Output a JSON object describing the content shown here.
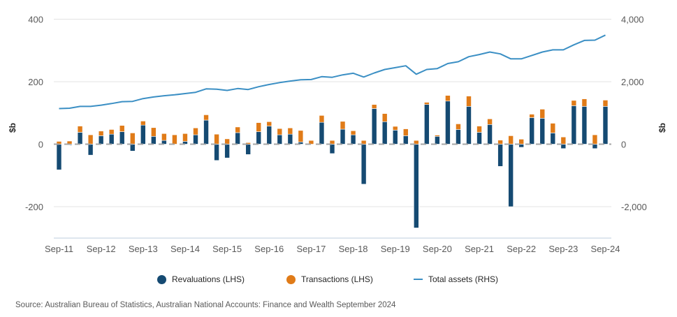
{
  "chart_data": {
    "type": "bar",
    "subtype": "stacked-bar-with-line-dual-axis",
    "title": "",
    "xlabel": "",
    "ylabel_left": "$b",
    "ylabel_right": "$b",
    "ylim_left": [
      -300,
      400
    ],
    "ylim_right": [
      -3000,
      4000
    ],
    "yticks_left": [
      "400",
      "200",
      "0",
      "-200"
    ],
    "yticks_left_values": [
      400,
      200,
      0,
      -200
    ],
    "yticks_right": [
      "4,000",
      "2,000",
      "0",
      "-2,000"
    ],
    "yticks_right_values": [
      4000,
      2000,
      0,
      -2000
    ],
    "grid": true,
    "legend_position": "bottom",
    "xtick_labels": [
      "Sep-11",
      "Sep-12",
      "Sep-13",
      "Sep-14",
      "Sep-15",
      "Sep-16",
      "Sep-17",
      "Sep-18",
      "Sep-19",
      "Sep-20",
      "Sep-21",
      "Sep-22",
      "Sep-23",
      "Sep-24"
    ],
    "categories": [
      "Sep-11",
      "Dec-11",
      "Mar-12",
      "Jun-12",
      "Sep-12",
      "Dec-12",
      "Mar-13",
      "Jun-13",
      "Sep-13",
      "Dec-13",
      "Mar-14",
      "Jun-14",
      "Sep-14",
      "Dec-14",
      "Mar-15",
      "Jun-15",
      "Sep-15",
      "Dec-15",
      "Mar-16",
      "Jun-16",
      "Sep-16",
      "Dec-16",
      "Mar-17",
      "Jun-17",
      "Sep-17",
      "Dec-17",
      "Mar-18",
      "Jun-18",
      "Sep-18",
      "Dec-18",
      "Mar-19",
      "Jun-19",
      "Sep-19",
      "Dec-19",
      "Mar-20",
      "Jun-20",
      "Sep-20",
      "Dec-20",
      "Mar-21",
      "Jun-21",
      "Sep-21",
      "Dec-21",
      "Mar-22",
      "Jun-22",
      "Sep-22",
      "Dec-22",
      "Mar-23",
      "Jun-23",
      "Sep-23",
      "Dec-23",
      "Mar-24",
      "Jun-24",
      "Sep-24"
    ],
    "series": [
      {
        "name": "Revaluations (LHS)",
        "axis": "left",
        "kind": "bar",
        "color": "#154a72",
        "values": [
          -82,
          -3,
          38,
          -35,
          27,
          32,
          40,
          -22,
          61,
          25,
          12,
          0,
          9,
          30,
          77,
          -52,
          -44,
          37,
          -33,
          40,
          58,
          30,
          32,
          7,
          0,
          70,
          -30,
          48,
          30,
          -128,
          114,
          72,
          45,
          27,
          -268,
          127,
          25,
          138,
          47,
          121,
          38,
          63,
          -71,
          -200,
          -10,
          85,
          83,
          36,
          -14,
          123,
          121,
          -14,
          121
        ]
      },
      {
        "name": "Transactions (LHS)",
        "axis": "left",
        "kind": "bar",
        "color": "#e07b18",
        "values": [
          9,
          10,
          20,
          30,
          15,
          15,
          20,
          36,
          13,
          28,
          22,
          30,
          25,
          22,
          17,
          32,
          17,
          18,
          5,
          29,
          14,
          20,
          20,
          37,
          12,
          22,
          12,
          25,
          13,
          12,
          13,
          26,
          12,
          22,
          12,
          7,
          4,
          18,
          18,
          33,
          20,
          18,
          13,
          27,
          16,
          11,
          29,
          31,
          23,
          17,
          24,
          30,
          20
        ]
      },
      {
        "name": "Total assets (RHS)",
        "axis": "right",
        "kind": "line",
        "color": "#3b8fc4",
        "values": [
          1140,
          1150,
          1210,
          1210,
          1250,
          1300,
          1360,
          1370,
          1460,
          1510,
          1550,
          1580,
          1620,
          1660,
          1770,
          1760,
          1720,
          1780,
          1750,
          1840,
          1910,
          1970,
          2020,
          2060,
          2070,
          2160,
          2140,
          2220,
          2270,
          2150,
          2280,
          2390,
          2450,
          2510,
          2240,
          2390,
          2420,
          2580,
          2640,
          2800,
          2870,
          2950,
          2890,
          2730,
          2730,
          2840,
          2950,
          3020,
          3020,
          3180,
          3320,
          3330,
          3490
        ]
      }
    ]
  },
  "legend": [
    {
      "label": "Revaluations (LHS)",
      "marker": "circle",
      "color": "#154a72"
    },
    {
      "label": "Transactions (LHS)",
      "marker": "circle",
      "color": "#e07b18"
    },
    {
      "label": "Total assets (RHS)",
      "marker": "line",
      "color": "#3b8fc4"
    }
  ],
  "source": "Source: Australian Bureau of Statistics, Australian National Accounts: Finance and Wealth September 2024"
}
